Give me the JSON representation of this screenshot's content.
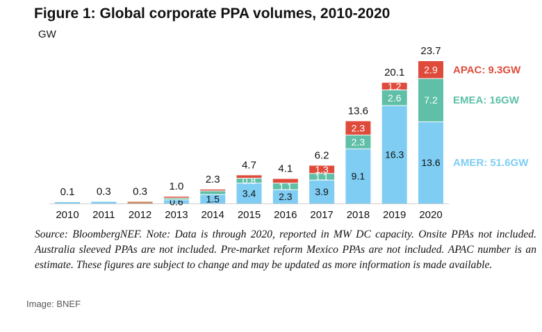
{
  "figure": {
    "title": "Figure 1: Global corporate PPA volumes, 2010-2020",
    "unit": "GW",
    "source_note": "Source: BloombergNEF. Note: Data is through 2020, reported in MW DC capacity. Onsite PPAs not included. Australia sleeved PPAs are not included. Pre-market reform Mexico PPAs are not included. APAC number is an estimate. These figures are subject to change and may be updated as more information is made available.",
    "image_credit": "Image: BNEF"
  },
  "colors": {
    "AMER": "#7fcdf3",
    "EMEA": "#5fbfa7",
    "APAC": "#df4b3b",
    "tiny_2012": "#c98a63",
    "axis": "#cfcfcf",
    "segment_text_light": "#ffffff",
    "segment_text_dark": "#111111"
  },
  "chart_data": {
    "type": "bar",
    "stacked": true,
    "categories": [
      "2010",
      "2011",
      "2012",
      "2013",
      "2014",
      "2015",
      "2016",
      "2017",
      "2018",
      "2019",
      "2020"
    ],
    "series": [
      {
        "name": "AMER",
        "values": [
          0.1,
          0.3,
          0.3,
          0.6,
          1.5,
          3.4,
          2.3,
          3.9,
          9.1,
          16.3,
          13.6
        ]
      },
      {
        "name": "EMEA",
        "values": [
          0,
          0,
          0,
          0.3,
          0.6,
          0.8,
          1.1,
          1.1,
          2.3,
          2.6,
          7.2
        ]
      },
      {
        "name": "APAC",
        "values": [
          0,
          0,
          0,
          0.1,
          0.2,
          0.5,
          0.7,
          1.3,
          2.3,
          1.2,
          2.9
        ]
      }
    ],
    "segment_labels": {
      "AMER": [
        "",
        "",
        "",
        "0.6",
        "1.5",
        "3.4",
        "2.3",
        "3.9",
        "9.1",
        "16.3",
        "13.6"
      ],
      "EMEA": [
        "",
        "",
        "",
        "",
        "",
        "0.8",
        "1.1",
        "1.1",
        "2.3",
        "2.6",
        "7.2"
      ],
      "APAC": [
        "",
        "",
        "",
        "",
        "",
        "",
        "",
        "1.3",
        "2.3",
        "1.2",
        "2.9"
      ]
    },
    "totals": [
      "0.1",
      "0.3",
      "0.3",
      "1.0",
      "2.3",
      "4.7",
      "4.1",
      "6.2",
      "13.6",
      "20.1",
      "23.7"
    ],
    "region_labels": [
      {
        "series": "APAC",
        "text": "APAC: 9.3GW"
      },
      {
        "series": "EMEA",
        "text": "EMEA: 16GW"
      },
      {
        "series": "AMER",
        "text": "AMER: 51.6GW"
      }
    ],
    "ylim": [
      0,
      23.7
    ],
    "ylabel": "GW",
    "grid": false
  }
}
